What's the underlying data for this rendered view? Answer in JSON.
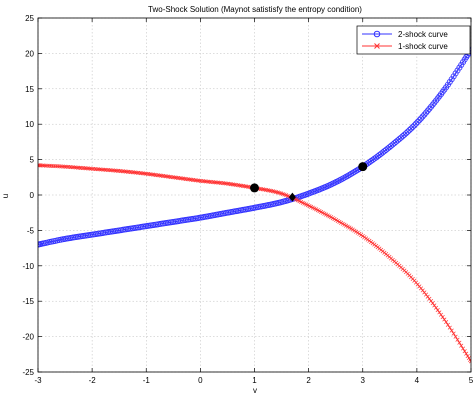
{
  "chart_data": {
    "type": "line",
    "title": "Two-Shock Solution (Maynot satistisfy the entropy condition)",
    "xlabel": "v",
    "ylabel": "u",
    "xlim": [
      -3,
      5
    ],
    "ylim": [
      -25,
      25
    ],
    "xticks": [
      -3,
      -2,
      -1,
      0,
      1,
      2,
      3,
      4,
      5
    ],
    "yticks": [
      -25,
      -20,
      -15,
      -10,
      -5,
      0,
      5,
      10,
      15,
      20,
      25
    ],
    "grid": true,
    "legend_position": "top-right",
    "series": [
      {
        "name": "2-shock curve",
        "color": "#3333ff",
        "marker": "circle",
        "points": [
          [
            -3,
            -7.0
          ],
          [
            -2.5,
            -6.2
          ],
          [
            -2,
            -5.6
          ],
          [
            -1.5,
            -5.0
          ],
          [
            -1,
            -4.4
          ],
          [
            -0.5,
            -3.8
          ],
          [
            0,
            -3.2
          ],
          [
            0.5,
            -2.5
          ],
          [
            1,
            -1.8
          ],
          [
            1.5,
            -1.0
          ],
          [
            2,
            0.2
          ],
          [
            2.5,
            1.8
          ],
          [
            3,
            4.0
          ],
          [
            3.5,
            6.8
          ],
          [
            4,
            10.2
          ],
          [
            4.5,
            14.8
          ],
          [
            5,
            20.5
          ]
        ]
      },
      {
        "name": "1-shock curve",
        "color": "#ff3333",
        "marker": "x",
        "points": [
          [
            -3,
            4.2
          ],
          [
            -2.5,
            4.0
          ],
          [
            -2,
            3.7
          ],
          [
            -1.5,
            3.4
          ],
          [
            -1,
            3.0
          ],
          [
            -0.5,
            2.5
          ],
          [
            0,
            2.0
          ],
          [
            0.5,
            1.6
          ],
          [
            1,
            1.0
          ],
          [
            1.5,
            0.2
          ],
          [
            2,
            -1.5
          ],
          [
            2.5,
            -3.5
          ],
          [
            3,
            -5.8
          ],
          [
            3.5,
            -8.8
          ],
          [
            4,
            -12.5
          ],
          [
            4.5,
            -17.5
          ],
          [
            5,
            -23.5
          ]
        ]
      }
    ],
    "highlight_points": [
      {
        "x": 1,
        "y": 1,
        "marker": "dot"
      },
      {
        "x": 3,
        "y": 4,
        "marker": "dot"
      },
      {
        "x": 1.7,
        "y": -0.3,
        "marker": "diamond"
      }
    ]
  }
}
